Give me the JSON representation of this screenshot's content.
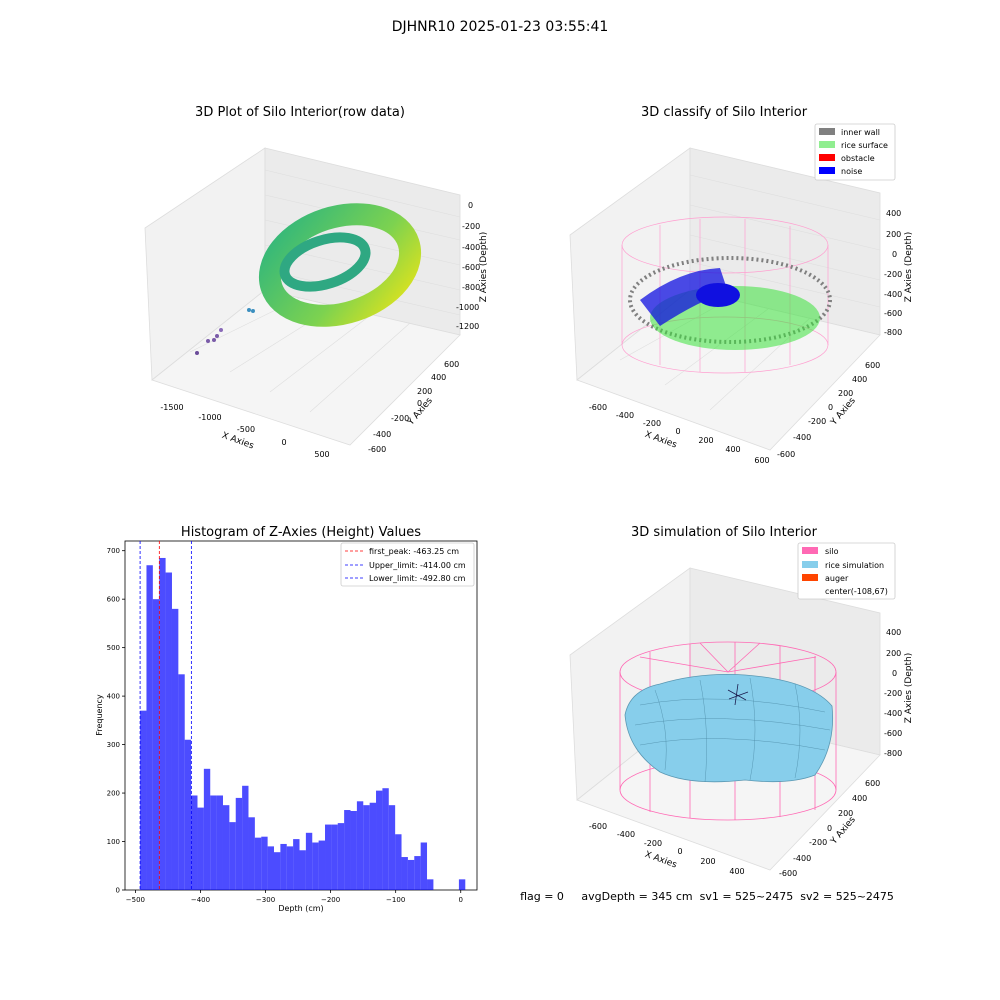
{
  "figure": {
    "suptitle": "DJHNR10 2025-01-23 03:55:41",
    "status_text": "flag = 0     avgDepth = 345 cm  sv1 = 525~2475  sv2 = 525~2475"
  },
  "chart_data": [
    {
      "type": "scatter3d",
      "title": "3D Plot of Silo Interior(row data)",
      "xlabel": "X Axies",
      "ylabel": "Y Axies",
      "zlabel": "Z Axies (Depth)",
      "x_ticks": [
        "-1500",
        "-1000",
        "-500",
        "0",
        "500"
      ],
      "y_ticks": [
        "-600",
        "-400",
        "-200",
        "0",
        "200",
        "400",
        "600"
      ],
      "z_ticks": [
        "0",
        "-200",
        "-400",
        "-600",
        "-800",
        "-1000",
        "-1200"
      ],
      "description_colormap": "viridis"
    },
    {
      "type": "scatter3d",
      "title": "3D classify of Silo Interior",
      "xlabel": "X Axies",
      "ylabel": "Y Axies",
      "zlabel": "Z Axies (Depth)",
      "x_ticks": [
        "-600",
        "-400",
        "-200",
        "0",
        "200",
        "400",
        "600"
      ],
      "y_ticks": [
        "-600",
        "-400",
        "-200",
        "0",
        "200",
        "400",
        "600"
      ],
      "z_ticks": [
        "400",
        "200",
        "0",
        "-200",
        "-400",
        "-600",
        "-800"
      ],
      "legend": [
        {
          "label": "inner wall",
          "color": "#808080"
        },
        {
          "label": "rice surface",
          "color": "#90ee90"
        },
        {
          "label": "obstacle",
          "color": "#ff0000"
        },
        {
          "label": "noise",
          "color": "#0000ff"
        }
      ],
      "legend_position": "top-right"
    },
    {
      "type": "bar",
      "title": "Histogram of Z-Axies (Height) Values",
      "xlabel": "Depth (cm)",
      "ylabel": "Frequency",
      "xlim": [
        -516,
        25
      ],
      "ylim": [
        0,
        720
      ],
      "x_ticks": [
        -500,
        -400,
        -300,
        -200,
        -100,
        0
      ],
      "y_ticks": [
        0,
        100,
        200,
        300,
        400,
        500,
        600,
        700
      ],
      "bar_color": "#0000ff",
      "bin_width": 9.8,
      "bin_start": -492.8,
      "values": [
        370,
        670,
        600,
        685,
        655,
        580,
        445,
        310,
        195,
        170,
        250,
        195,
        195,
        175,
        140,
        190,
        215,
        150,
        108,
        110,
        90,
        78,
        95,
        90,
        105,
        82,
        118,
        98,
        102,
        135,
        135,
        138,
        165,
        163,
        183,
        175,
        180,
        205,
        210,
        175,
        115,
        68,
        62,
        70,
        98,
        22,
        0,
        0,
        0,
        0,
        22
      ],
      "reference_lines": [
        {
          "label": "first_peak: -463.25 cm",
          "x": -463.25,
          "color": "#ff0000"
        },
        {
          "label": "Upper_limit: -414.00 cm",
          "x": -414.0,
          "color": "#0000ff"
        },
        {
          "label": "Lower_limit: -492.80 cm",
          "x": -492.8,
          "color": "#0000ff"
        }
      ],
      "legend_position": "top-right"
    },
    {
      "type": "surface3d",
      "title": "3D simulation of Silo Interior",
      "xlabel": "X Axies",
      "ylabel": "Y Axies",
      "zlabel": "Z Axies (Depth)",
      "x_ticks": [
        "-600",
        "-400",
        "-200",
        "0",
        "200",
        "400"
      ],
      "y_ticks": [
        "-600",
        "-400",
        "-200",
        "0",
        "200",
        "400",
        "600"
      ],
      "z_ticks": [
        "400",
        "200",
        "0",
        "-200",
        "-400",
        "-600",
        "-800"
      ],
      "legend": [
        {
          "label": "silo",
          "color": "#ff69b4"
        },
        {
          "label": "rice simulation",
          "color": "#87ceeb"
        },
        {
          "label": "auger",
          "color": "#ff4500"
        },
        {
          "label": "center(-108,67)",
          "color": ""
        }
      ],
      "legend_position": "top-right"
    }
  ]
}
